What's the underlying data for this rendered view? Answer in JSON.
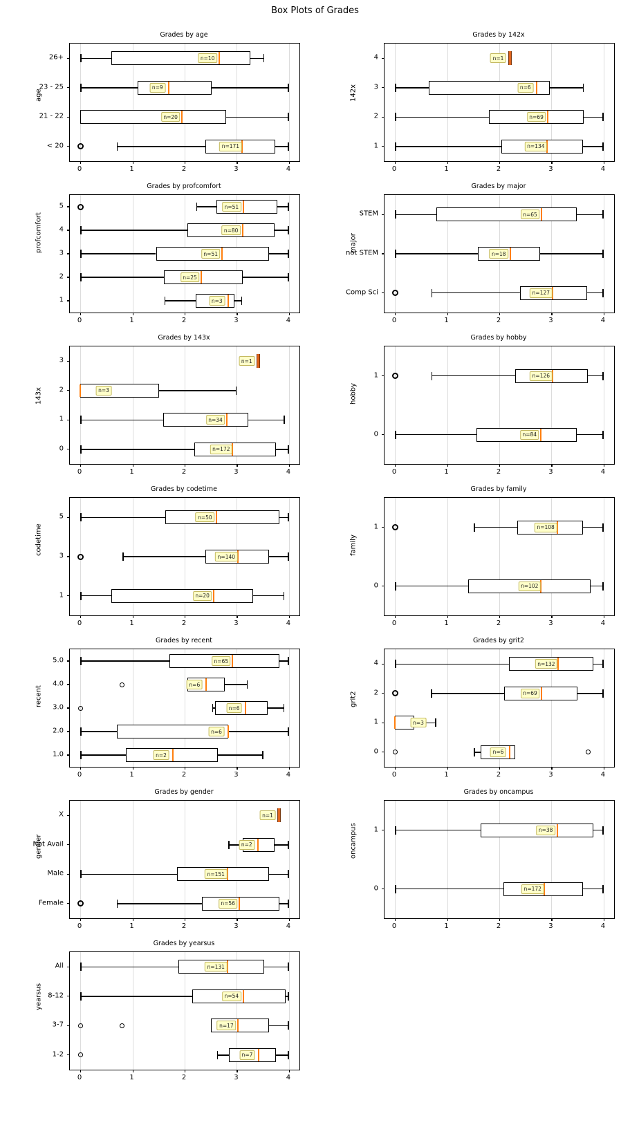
{
  "figure_title": "Box Plots of Grades",
  "colors": {
    "median": "#ff7f0e",
    "grid": "#dcdcdc",
    "box_edge": "#000000",
    "box_fill": "#ffffff",
    "count_label_bg": "#ffffc9",
    "count_label_border": "#c4b960"
  },
  "chart_data": [
    {
      "type": "boxplot",
      "title": "Grades by age",
      "ylabel": "age",
      "col": 0,
      "row": 0,
      "xticks": [
        0,
        1,
        2,
        3,
        4
      ],
      "xlim": [
        -0.2,
        4.2
      ],
      "boxes": [
        {
          "category": "26+",
          "n_label": "n=10",
          "lo": 0,
          "q1": 0.6,
          "med": 2.66,
          "q3": 3.26,
          "hi": 3.53,
          "outliers": []
        },
        {
          "category": "23 - 25",
          "n_label": "n=9",
          "lo": 0,
          "q1": 1.1,
          "med": 1.7,
          "q3": 2.52,
          "hi": 4.0,
          "outliers": []
        },
        {
          "category": "21 - 22",
          "n_label": "n=20",
          "lo": 0,
          "q1": 0,
          "med": 1.95,
          "q3": 2.8,
          "hi": 4.0,
          "outliers": []
        },
        {
          "category": "< 20",
          "n_label": "n=171",
          "lo": 0.7,
          "q1": 2.4,
          "med": 3.1,
          "q3": 3.73,
          "hi": 4.0,
          "outliers": [
            {
              "x": 0,
              "heavy": true
            }
          ]
        }
      ]
    },
    {
      "type": "boxplot",
      "title": "Grades by 142x",
      "ylabel": "142x",
      "col": 1,
      "row": 0,
      "xticks": [
        0,
        1,
        2,
        3,
        4
      ],
      "xlim": [
        -0.2,
        4.2
      ],
      "boxes": [
        {
          "category": "4",
          "n_label": "n=1",
          "lo": 2.2,
          "q1": 2.2,
          "med": 2.2,
          "q3": 2.2,
          "hi": 2.2,
          "outliers": []
        },
        {
          "category": "3",
          "n_label": "n=6",
          "lo": 0,
          "q1": 0.65,
          "med": 2.72,
          "q3": 2.97,
          "hi": 3.62,
          "outliers": []
        },
        {
          "category": "2",
          "n_label": "n=69",
          "lo": 0,
          "q1": 1.8,
          "med": 2.93,
          "q3": 3.62,
          "hi": 4.0,
          "outliers": []
        },
        {
          "category": "1",
          "n_label": "n=134",
          "lo": 0,
          "q1": 2.04,
          "med": 2.92,
          "q3": 3.6,
          "hi": 4.0,
          "outliers": []
        }
      ]
    },
    {
      "type": "boxplot",
      "title": "Grades by profcomfort",
      "ylabel": "profcomfort",
      "col": 0,
      "row": 1,
      "xticks": [
        0,
        1,
        2,
        3,
        4
      ],
      "xlim": [
        -0.2,
        4.2
      ],
      "boxes": [
        {
          "category": "5",
          "n_label": "n=51",
          "lo": 2.22,
          "q1": 2.61,
          "med": 3.12,
          "q3": 3.77,
          "hi": 4.0,
          "outliers": [
            {
              "x": 0,
              "heavy": true
            }
          ]
        },
        {
          "category": "4",
          "n_label": "n=80",
          "lo": 0,
          "q1": 2.05,
          "med": 3.11,
          "q3": 3.72,
          "hi": 4.0,
          "outliers": []
        },
        {
          "category": "3",
          "n_label": "n=51",
          "lo": 0,
          "q1": 1.45,
          "med": 2.72,
          "q3": 3.62,
          "hi": 4.0,
          "outliers": []
        },
        {
          "category": "2",
          "n_label": "n=25",
          "lo": 0,
          "q1": 1.6,
          "med": 2.32,
          "q3": 3.11,
          "hi": 4.0,
          "outliers": []
        },
        {
          "category": "1",
          "n_label": "n=3",
          "lo": 1.61,
          "q1": 2.21,
          "med": 2.84,
          "q3": 2.96,
          "hi": 3.1,
          "outliers": []
        }
      ]
    },
    {
      "type": "boxplot",
      "title": "Grades by major",
      "ylabel": "major",
      "col": 1,
      "row": 1,
      "xticks": [
        0,
        1,
        2,
        3,
        4
      ],
      "xlim": [
        -0.2,
        4.2
      ],
      "boxes": [
        {
          "category": "STEM",
          "n_label": "n=65",
          "lo": 0,
          "q1": 0.79,
          "med": 2.81,
          "q3": 3.49,
          "hi": 4.0,
          "outliers": []
        },
        {
          "category": "not STEM",
          "n_label": "n=18",
          "lo": 0,
          "q1": 1.59,
          "med": 2.21,
          "q3": 2.78,
          "hi": 4.0,
          "outliers": []
        },
        {
          "category": "Comp Sci",
          "n_label": "n=127",
          "lo": 0.7,
          "q1": 2.4,
          "med": 3.02,
          "q3": 3.68,
          "hi": 4.0,
          "outliers": [
            {
              "x": 0,
              "heavy": true
            }
          ]
        }
      ]
    },
    {
      "type": "boxplot",
      "title": "Grades by 143x",
      "ylabel": "143x",
      "col": 0,
      "row": 2,
      "xticks": [
        0,
        1,
        2,
        3,
        4
      ],
      "xlim": [
        -0.2,
        4.2
      ],
      "boxes": [
        {
          "category": "3",
          "n_label": "n=1",
          "lo": 3.41,
          "q1": 3.41,
          "med": 3.41,
          "q3": 3.41,
          "hi": 3.41,
          "outliers": []
        },
        {
          "category": "2",
          "n_label": "n=3",
          "lo": 0,
          "q1": 0,
          "med": 0,
          "q3": 1.51,
          "hi": 3.0,
          "outliers": []
        },
        {
          "category": "1",
          "n_label": "n=34",
          "lo": 0,
          "q1": 1.59,
          "med": 2.81,
          "q3": 3.22,
          "hi": 3.92,
          "outliers": []
        },
        {
          "category": "0",
          "n_label": "n=172",
          "lo": 0,
          "q1": 2.19,
          "med": 2.92,
          "q3": 3.75,
          "hi": 4.0,
          "outliers": []
        }
      ]
    },
    {
      "type": "boxplot",
      "title": "Grades by hobby",
      "ylabel": "hobby",
      "col": 1,
      "row": 2,
      "xticks": [
        0,
        1,
        2,
        3,
        4
      ],
      "xlim": [
        -0.2,
        4.2
      ],
      "boxes": [
        {
          "category": "1",
          "n_label": "n=126",
          "lo": 0.7,
          "q1": 2.3,
          "med": 3.02,
          "q3": 3.69,
          "hi": 4.0,
          "outliers": [
            {
              "x": 0,
              "heavy": true
            }
          ]
        },
        {
          "category": "0",
          "n_label": "n=84",
          "lo": 0,
          "q1": 1.56,
          "med": 2.8,
          "q3": 3.49,
          "hi": 4.0,
          "outliers": []
        }
      ]
    },
    {
      "type": "boxplot",
      "title": "Grades by codetime",
      "ylabel": "codetime",
      "col": 0,
      "row": 3,
      "xticks": [
        0,
        1,
        2,
        3,
        4
      ],
      "xlim": [
        -0.2,
        4.2
      ],
      "boxes": [
        {
          "category": "5",
          "n_label": "n=50",
          "lo": 0,
          "q1": 1.63,
          "med": 2.61,
          "q3": 3.81,
          "hi": 4.0,
          "outliers": []
        },
        {
          "category": "3",
          "n_label": "n=140",
          "lo": 0.81,
          "q1": 2.4,
          "med": 3.02,
          "q3": 3.62,
          "hi": 4.0,
          "outliers": [
            {
              "x": 0,
              "heavy": true
            }
          ]
        },
        {
          "category": "1",
          "n_label": "n=20",
          "lo": 0,
          "q1": 0.59,
          "med": 2.56,
          "q3": 3.31,
          "hi": 3.91,
          "outliers": []
        }
      ]
    },
    {
      "type": "boxplot",
      "title": "Grades by family",
      "ylabel": "family",
      "col": 1,
      "row": 3,
      "xticks": [
        0,
        1,
        2,
        3,
        4
      ],
      "xlim": [
        -0.2,
        4.2
      ],
      "boxes": [
        {
          "category": "1",
          "n_label": "n=108",
          "lo": 1.51,
          "q1": 2.35,
          "med": 3.11,
          "q3": 3.6,
          "hi": 4.0,
          "outliers": [
            {
              "x": 0,
              "heavy": true
            }
          ]
        },
        {
          "category": "0",
          "n_label": "n=102",
          "lo": 0,
          "q1": 1.41,
          "med": 2.8,
          "q3": 3.75,
          "hi": 4.0,
          "outliers": []
        }
      ]
    },
    {
      "type": "boxplot",
      "title": "Grades by recent",
      "ylabel": "recent",
      "col": 0,
      "row": 4,
      "xticks": [
        0,
        1,
        2,
        3,
        4
      ],
      "xlim": [
        -0.2,
        4.2
      ],
      "boxes": [
        {
          "category": "5.0",
          "n_label": "n=65",
          "lo": 0,
          "q1": 1.71,
          "med": 2.92,
          "q3": 3.81,
          "hi": 4.0,
          "outliers": []
        },
        {
          "category": "4.0",
          "n_label": "n=6",
          "lo": 2.02,
          "q1": 2.05,
          "med": 2.41,
          "q3": 2.77,
          "hi": 3.21,
          "outliers": [
            {
              "x": 0.8,
              "heavy": false
            }
          ]
        },
        {
          "category": "3.0",
          "n_label": "n=6",
          "lo": 2.53,
          "q1": 2.58,
          "med": 3.17,
          "q3": 3.59,
          "hi": 3.91,
          "outliers": [
            {
              "x": 0,
              "heavy": false
            }
          ]
        },
        {
          "category": "2.0",
          "n_label": "n=6",
          "lo": 0,
          "q1": 0.7,
          "med": 2.83,
          "q3": 2.84,
          "hi": 4.0,
          "outliers": []
        },
        {
          "category": "1.0",
          "n_label": "n=2",
          "lo": 0,
          "q1": 0.88,
          "med": 1.77,
          "q3": 2.63,
          "hi": 3.51,
          "outliers": []
        }
      ]
    },
    {
      "type": "boxplot",
      "title": "Grades by grit2",
      "ylabel": "grit2",
      "col": 1,
      "row": 4,
      "xticks": [
        0,
        1,
        2,
        3,
        4
      ],
      "xlim": [
        -0.2,
        4.2
      ],
      "boxes": [
        {
          "category": "4",
          "n_label": "n=132",
          "lo": 0,
          "q1": 2.18,
          "med": 3.12,
          "q3": 3.8,
          "hi": 4.0,
          "outliers": []
        },
        {
          "category": "2",
          "n_label": "n=69",
          "lo": 0.69,
          "q1": 2.09,
          "med": 2.81,
          "q3": 3.5,
          "hi": 4.0,
          "outliers": [
            {
              "x": 0,
              "heavy": true
            }
          ]
        },
        {
          "category": "1",
          "n_label": "n=3",
          "lo": 0,
          "q1": 0,
          "med": 0,
          "q3": 0.37,
          "hi": 0.79,
          "outliers": []
        },
        {
          "category": "0",
          "n_label": "n=6",
          "lo": 1.51,
          "q1": 1.64,
          "med": 2.2,
          "q3": 2.3,
          "hi": 2.3,
          "outliers": [
            {
              "x": 0,
              "heavy": false
            },
            {
              "x": 3.7,
              "heavy": false
            }
          ]
        }
      ]
    },
    {
      "type": "boxplot",
      "title": "Grades by gender",
      "ylabel": "gender",
      "col": 0,
      "row": 5,
      "xticks": [
        0,
        1,
        2,
        3,
        4
      ],
      "xlim": [
        -0.2,
        4.2
      ],
      "boxes": [
        {
          "category": "X",
          "n_label": "n=1",
          "lo": 3.81,
          "q1": 3.81,
          "med": 3.81,
          "q3": 3.81,
          "hi": 3.81,
          "outliers": []
        },
        {
          "category": "Not Avail",
          "n_label": "n=2",
          "lo": 2.84,
          "q1": 3.11,
          "med": 3.41,
          "q3": 3.72,
          "hi": 4.0,
          "outliers": []
        },
        {
          "category": "Male",
          "n_label": "n=151",
          "lo": 0,
          "q1": 1.86,
          "med": 2.82,
          "q3": 3.62,
          "hi": 4.0,
          "outliers": []
        },
        {
          "category": "Female",
          "n_label": "n=56",
          "lo": 0.7,
          "q1": 2.33,
          "med": 3.05,
          "q3": 3.81,
          "hi": 4.0,
          "outliers": [
            {
              "x": 0,
              "heavy": true
            }
          ]
        }
      ]
    },
    {
      "type": "boxplot",
      "title": "Grades by oncampus",
      "ylabel": "oncampus",
      "col": 1,
      "row": 5,
      "xticks": [
        0,
        1,
        2,
        3,
        4
      ],
      "xlim": [
        -0.2,
        4.2
      ],
      "boxes": [
        {
          "category": "1",
          "n_label": "n=38",
          "lo": 0,
          "q1": 1.64,
          "med": 3.11,
          "q3": 3.8,
          "hi": 4.0,
          "outliers": []
        },
        {
          "category": "0",
          "n_label": "n=172",
          "lo": 0,
          "q1": 2.08,
          "med": 2.86,
          "q3": 3.6,
          "hi": 4.0,
          "outliers": []
        }
      ]
    },
    {
      "type": "boxplot",
      "title": "Grades by yearsus",
      "ylabel": "yearsus",
      "col": 0,
      "row": 6,
      "xticks": [
        0,
        1,
        2,
        3,
        4
      ],
      "xlim": [
        -0.2,
        4.2
      ],
      "boxes": [
        {
          "category": "All",
          "n_label": "n=131",
          "lo": 0,
          "q1": 1.88,
          "med": 2.82,
          "q3": 3.53,
          "hi": 4.0,
          "outliers": []
        },
        {
          "category": "8-12",
          "n_label": "n=54",
          "lo": 0,
          "q1": 2.15,
          "med": 3.12,
          "q3": 3.93,
          "hi": 4.0,
          "outliers": []
        },
        {
          "category": "3-7",
          "n_label": "n=17",
          "lo": 2.5,
          "q1": 2.5,
          "med": 3.02,
          "q3": 3.62,
          "hi": 4.0,
          "outliers": [
            {
              "x": 0,
              "heavy": false
            },
            {
              "x": 0.8,
              "heavy": false
            }
          ]
        },
        {
          "category": "1-2",
          "n_label": "n=7",
          "lo": 2.62,
          "q1": 2.85,
          "med": 3.42,
          "q3": 3.75,
          "hi": 4.0,
          "outliers": [
            {
              "x": 0,
              "heavy": false
            }
          ]
        }
      ]
    }
  ]
}
